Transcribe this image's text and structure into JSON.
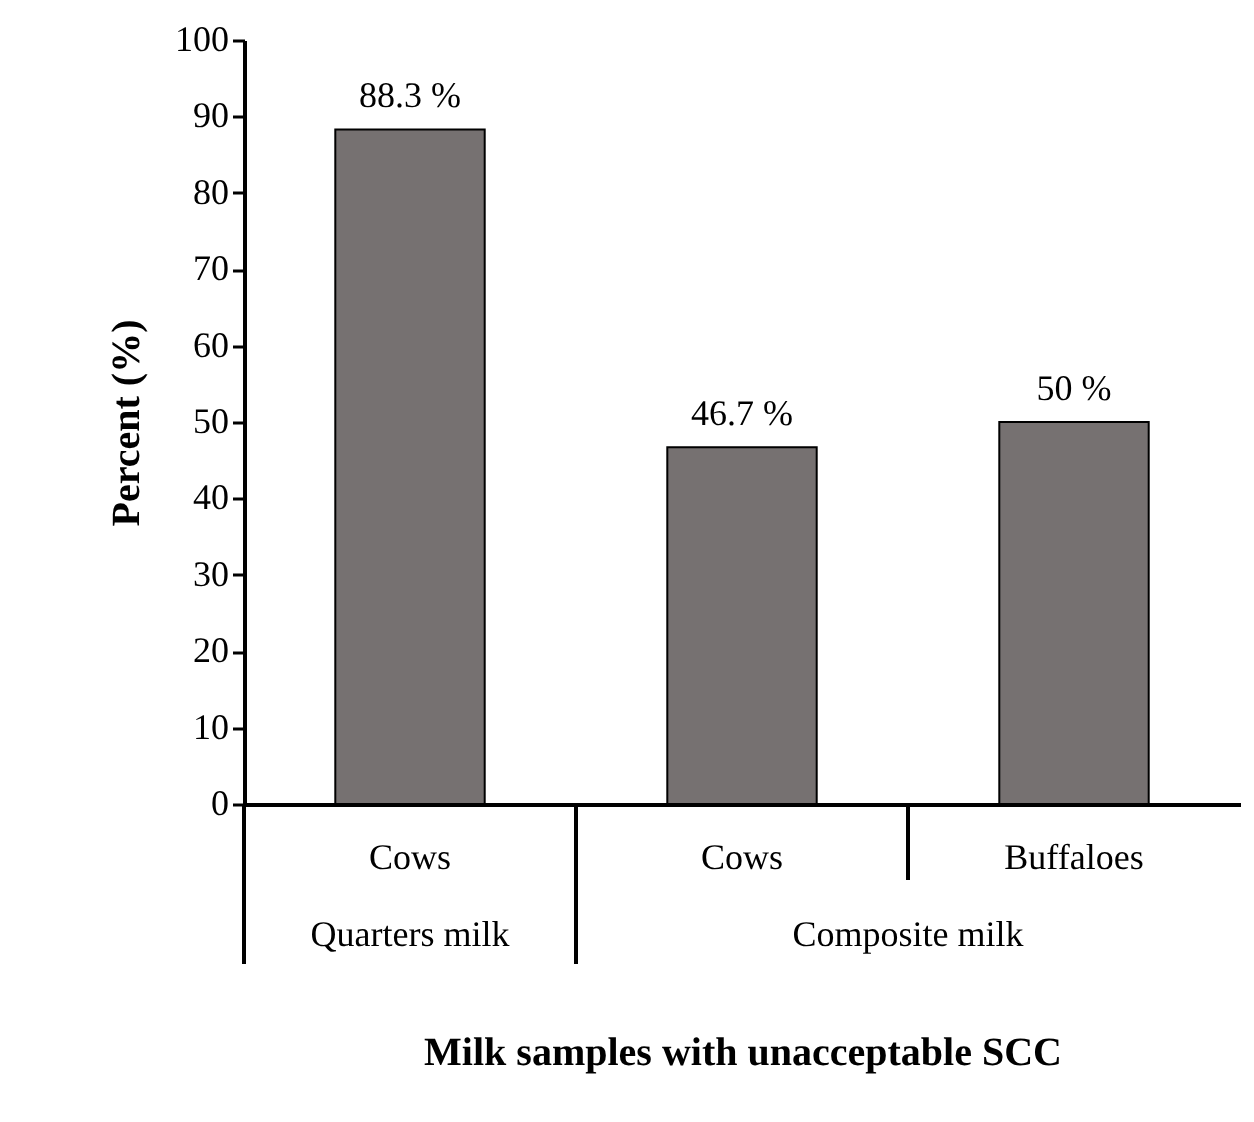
{
  "chart_data": {
    "type": "bar",
    "xlabel": "Milk samples with unacceptable SCC",
    "ylabel": "Percent (%)",
    "categories": [
      "Cows",
      "Cows",
      "Buffaloes"
    ],
    "values": [
      88.3,
      46.7,
      50
    ],
    "value_labels": [
      "88.3 %",
      "46.7 %",
      "50 %"
    ],
    "color": "#767171",
    "ylim": [
      0,
      100
    ],
    "yticks": [
      0,
      10,
      20,
      30,
      40,
      50,
      60,
      70,
      80,
      90,
      100
    ],
    "annotations": [
      "Quarters milk",
      "Composite milk"
    ],
    "grid": false
  }
}
